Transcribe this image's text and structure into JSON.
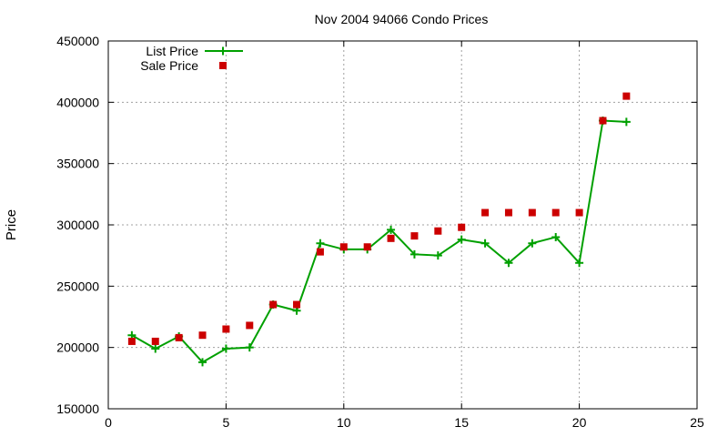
{
  "chart_data": {
    "type": "line",
    "title": "Nov 2004 94066 Condo Prices",
    "ylabel": "Price",
    "xlabel": "",
    "xlim": [
      0,
      25
    ],
    "ylim": [
      150000,
      450000
    ],
    "xticks": [
      0,
      5,
      10,
      15,
      20,
      25
    ],
    "yticks": [
      150000,
      200000,
      250000,
      300000,
      350000,
      400000,
      450000
    ],
    "grid": true,
    "legend_position": "top-left",
    "series": [
      {
        "name": "List Price",
        "style": "lines+points",
        "marker": "plus",
        "color": "#00a000",
        "x": [
          1,
          2,
          3,
          4,
          5,
          6,
          7,
          8,
          9,
          10,
          11,
          12,
          13,
          14,
          15,
          16,
          17,
          18,
          19,
          20,
          21,
          22
        ],
        "y": [
          210000,
          199000,
          209000,
          188000,
          199000,
          200000,
          235000,
          230000,
          285000,
          280000,
          280000,
          296000,
          276000,
          275000,
          288000,
          285000,
          269000,
          285000,
          290000,
          269000,
          385000,
          384000
        ]
      },
      {
        "name": "Sale Price",
        "style": "points",
        "marker": "square",
        "color": "#cc0000",
        "x": [
          1,
          2,
          3,
          4,
          5,
          6,
          7,
          8,
          9,
          10,
          11,
          12,
          13,
          14,
          15,
          16,
          17,
          18,
          19,
          20,
          21,
          22
        ],
        "y": [
          205000,
          205000,
          208000,
          210000,
          215000,
          218000,
          235000,
          235000,
          278000,
          282000,
          282000,
          289000,
          291000,
          295000,
          298000,
          310000,
          310000,
          310000,
          310000,
          310000,
          385000,
          405000
        ]
      }
    ]
  }
}
